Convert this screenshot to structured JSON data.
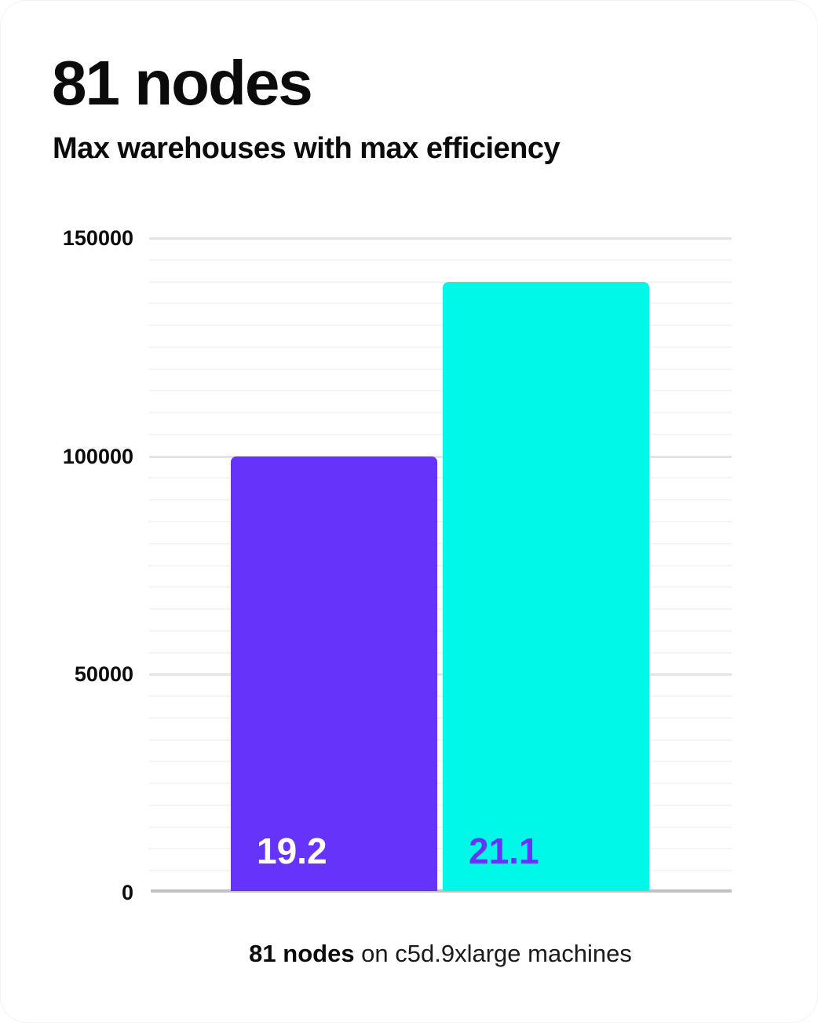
{
  "page": {
    "title": "81 nodes",
    "subtitle": "Max warehouses with max efficiency"
  },
  "caption": {
    "bold": "81 nodes",
    "rest": " on c5d.9xlarge machines"
  },
  "chart_data": {
    "type": "bar",
    "title": "81 nodes",
    "subtitle": "Max warehouses with max efficiency",
    "categories": [
      "19.2",
      "21.1"
    ],
    "values": [
      100000,
      140000
    ],
    "bar_labels": [
      "19.2",
      "21.1"
    ],
    "bar_colors": [
      "#6633FA",
      "#00F8E8"
    ],
    "bar_label_colors": [
      "#FFFFFF",
      "#6633FA"
    ],
    "xlabel": "",
    "ylabel": "",
    "ylim": [
      0,
      150000
    ],
    "yticks": [
      0,
      50000,
      100000,
      150000
    ],
    "ytick_labels": [
      "0",
      "50000",
      "100000",
      "150000"
    ],
    "minor_tick_step": 5000,
    "grid": "horizontal",
    "legend_position": "none",
    "caption": "81 nodes on c5d.9xlarge machines",
    "colors": {
      "major_grid": "#E4E4E4",
      "minor_grid": "#F4F4F4",
      "baseline": "#C1C1C1",
      "text": "#0B0B0B",
      "background": "#FFFFFF"
    }
  }
}
